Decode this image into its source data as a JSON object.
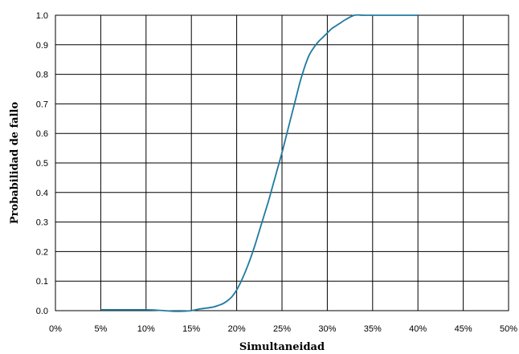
{
  "chart_data": {
    "type": "line",
    "title": "",
    "xlabel": "Simultaneidad",
    "ylabel": "Probabilidad de fallo",
    "xlim": [
      0,
      50
    ],
    "ylim": [
      0,
      1
    ],
    "grid": true,
    "x_tick_labels": [
      "0%",
      "5%",
      "10%",
      "15%",
      "20%",
      "25%",
      "30%",
      "35%",
      "40%",
      "45%",
      "50%"
    ],
    "y_tick_labels": [
      "0.0",
      "0.1",
      "0.2",
      "0.3",
      "0.4",
      "0.5",
      "0.6",
      "0.7",
      "0.8",
      "0.9",
      "1.0"
    ],
    "series": [
      {
        "color": "#1f7a9e",
        "x": [
          5,
          6,
          8,
          10,
          11,
          12,
          13,
          14,
          15,
          16,
          17,
          17.5,
          18,
          18.5,
          19,
          19.5,
          20,
          20.5,
          21,
          21.5,
          22,
          22.5,
          23,
          23.5,
          24,
          24.5,
          25,
          25.5,
          26,
          26.5,
          27,
          27.5,
          28,
          28.5,
          29,
          29.5,
          30,
          30.5,
          31,
          31.5,
          32,
          33,
          34,
          35,
          36,
          37,
          38,
          39,
          40
        ],
        "y": [
          0.003,
          0.003,
          0.003,
          0.003,
          0.002,
          0.0,
          -0.002,
          -0.002,
          0.0,
          0.006,
          0.01,
          0.013,
          0.018,
          0.024,
          0.034,
          0.048,
          0.07,
          0.1,
          0.135,
          0.175,
          0.22,
          0.27,
          0.32,
          0.37,
          0.425,
          0.48,
          0.535,
          0.595,
          0.655,
          0.715,
          0.775,
          0.825,
          0.865,
          0.89,
          0.91,
          0.925,
          0.94,
          0.955,
          0.965,
          0.975,
          0.985,
          1.0,
          1.0,
          1.0,
          1.0,
          1.0,
          1.0,
          1.0,
          1.0
        ]
      }
    ]
  }
}
